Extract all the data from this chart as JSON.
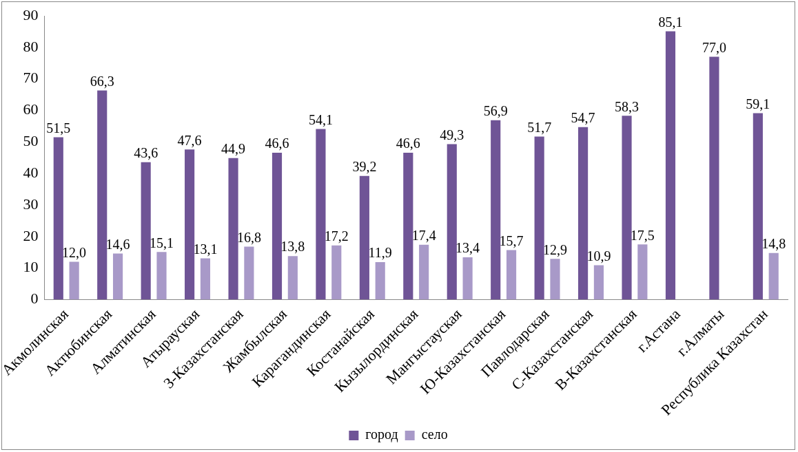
{
  "chart_data": {
    "type": "bar",
    "categories": [
      "Акмолинская",
      "Актюбинская",
      "Алматинская",
      "Атырауская",
      "З-Казахстанская",
      "Жамбылская",
      "Карагандинская",
      "Костанайская",
      "Кызылординская",
      "Мангыстауская",
      "Ю-Казахстанская",
      "Павлодарская",
      "С-Казахстанская",
      "В-Казахстанская",
      "г.Астана",
      "г.Алматы",
      "Республика Казахстан"
    ],
    "series": [
      {
        "name": "город",
        "color": "#6f5496",
        "values": [
          51.5,
          66.3,
          43.6,
          47.6,
          44.9,
          46.6,
          54.1,
          39.2,
          46.6,
          49.3,
          56.9,
          51.7,
          54.7,
          58.3,
          85.1,
          77.0,
          59.1
        ],
        "value_labels": [
          "51,5",
          "66,3",
          "43,6",
          "47,6",
          "44,9",
          "46,6",
          "54,1",
          "39,2",
          "46,6",
          "49,3",
          "56,9",
          "51,7",
          "54,7",
          "58,3",
          "85,1",
          "77,0",
          "59,1"
        ]
      },
      {
        "name": "село",
        "color": "#a899c8",
        "values": [
          12.0,
          14.6,
          15.1,
          13.1,
          16.8,
          13.8,
          17.2,
          11.9,
          17.4,
          13.4,
          15.7,
          12.9,
          10.9,
          17.5,
          null,
          null,
          14.8
        ],
        "value_labels": [
          "12,0",
          "14,6",
          "15,1",
          "13,1",
          "16,8",
          "13,8",
          "17,2",
          "11,9",
          "17,4",
          "13,4",
          "15,7",
          "12,9",
          "10,9",
          "17,5",
          null,
          null,
          "14,8"
        ]
      }
    ],
    "ylim": [
      0,
      90
    ],
    "yticks": [
      0,
      10,
      20,
      30,
      40,
      50,
      60,
      70,
      80,
      90
    ],
    "grid": false,
    "legend": "bottom"
  }
}
